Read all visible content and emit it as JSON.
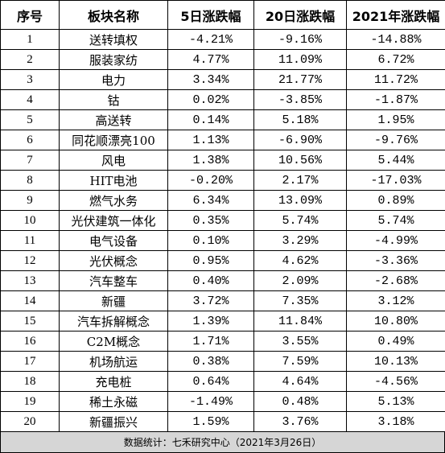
{
  "headers": [
    "序号",
    "板块名称",
    "5日涨跌幅",
    "20日涨跌幅",
    "2021年涨跌幅"
  ],
  "rows": [
    {
      "idx": "1",
      "name": "送转填权",
      "d5": "-4.21%",
      "d20": "-9.16%",
      "y2021": "-14.88%"
    },
    {
      "idx": "2",
      "name": "服装家纺",
      "d5": "4.77%",
      "d20": "11.09%",
      "y2021": "6.72%"
    },
    {
      "idx": "3",
      "name": "电力",
      "d5": "3.34%",
      "d20": "21.77%",
      "y2021": "11.72%"
    },
    {
      "idx": "4",
      "name": "钴",
      "d5": "0.02%",
      "d20": "-3.85%",
      "y2021": "-1.87%"
    },
    {
      "idx": "5",
      "name": "高送转",
      "d5": "0.14%",
      "d20": "5.18%",
      "y2021": "1.95%"
    },
    {
      "idx": "6",
      "name": "同花顺漂亮100",
      "d5": "1.13%",
      "d20": "-6.90%",
      "y2021": "-9.76%"
    },
    {
      "idx": "7",
      "name": "风电",
      "d5": "1.38%",
      "d20": "10.56%",
      "y2021": "5.44%"
    },
    {
      "idx": "8",
      "name": "HIT电池",
      "d5": "-0.20%",
      "d20": "2.17%",
      "y2021": "-17.03%"
    },
    {
      "idx": "9",
      "name": "燃气水务",
      "d5": "6.34%",
      "d20": "13.09%",
      "y2021": "0.89%"
    },
    {
      "idx": "10",
      "name": "光伏建筑一体化",
      "d5": "0.35%",
      "d20": "5.74%",
      "y2021": "5.74%"
    },
    {
      "idx": "11",
      "name": "电气设备",
      "d5": "0.10%",
      "d20": "3.29%",
      "y2021": "-4.99%"
    },
    {
      "idx": "12",
      "name": "光伏概念",
      "d5": "0.95%",
      "d20": "4.62%",
      "y2021": "-3.36%"
    },
    {
      "idx": "13",
      "name": "汽车整车",
      "d5": "0.40%",
      "d20": "2.09%",
      "y2021": "-2.68%"
    },
    {
      "idx": "14",
      "name": "新疆",
      "d5": "3.72%",
      "d20": "7.35%",
      "y2021": "3.12%"
    },
    {
      "idx": "15",
      "name": "汽车拆解概念",
      "d5": "1.39%",
      "d20": "11.84%",
      "y2021": "10.80%"
    },
    {
      "idx": "16",
      "name": "C2M概念",
      "d5": "1.71%",
      "d20": "3.55%",
      "y2021": "0.49%"
    },
    {
      "idx": "17",
      "name": "机场航运",
      "d5": "0.38%",
      "d20": "7.59%",
      "y2021": "10.13%"
    },
    {
      "idx": "18",
      "name": "充电桩",
      "d5": "0.64%",
      "d20": "4.64%",
      "y2021": "-4.56%"
    },
    {
      "idx": "19",
      "name": "稀土永磁",
      "d5": "-1.49%",
      "d20": "0.48%",
      "y2021": "5.13%"
    },
    {
      "idx": "20",
      "name": "新疆振兴",
      "d5": "1.59%",
      "d20": "3.76%",
      "y2021": "3.18%"
    }
  ],
  "footer": "数据统计：七禾研究中心（2021年3月26日）",
  "colors": {
    "footer_bg": "#d6d6d6",
    "border": "#000000"
  }
}
